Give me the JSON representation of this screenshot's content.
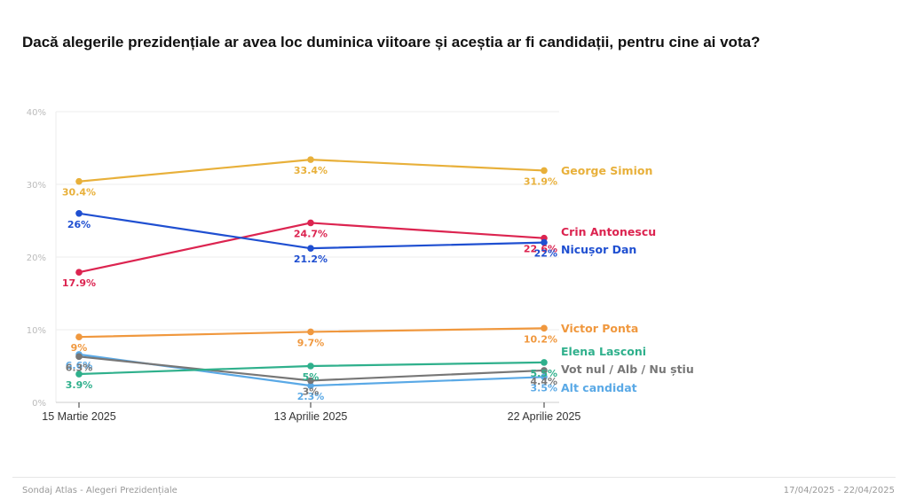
{
  "title": "Dacă alegerile prezidențiale ar avea loc duminica viitoare și aceștia ar fi candidații, pentru cine ai vota?",
  "footer": {
    "source": "Sondaj Atlas - Alegeri Prezidențiale",
    "date_range": "17/04/2025 - 22/04/2025"
  },
  "chart_data": {
    "type": "line",
    "title": "Dacă alegerile prezidențiale ar avea loc duminica viitoare și aceștia ar fi candidații, pentru cine ai vota?",
    "xlabel": "",
    "ylabel": "",
    "x": [
      "15 Martie 2025",
      "13 Aprilie 2025",
      "22 Aprilie 2025"
    ],
    "ylim": [
      0,
      40
    ],
    "yticks": [
      0,
      10,
      20,
      30,
      40
    ],
    "ytick_labels": [
      "0%",
      "10%",
      "20%",
      "30%",
      "40%"
    ],
    "grid": true,
    "legend": "right (inline labels at line ends)",
    "series": [
      {
        "name": "George Simion",
        "color": "#e8b03a",
        "values": [
          30.4,
          33.4,
          31.9
        ],
        "labels": [
          "30.4%",
          "33.4%",
          "31.9%"
        ]
      },
      {
        "name": "Crin Antonescu",
        "color": "#dc2450",
        "values": [
          17.9,
          24.7,
          22.6
        ],
        "labels": [
          "17.9%",
          "24.7%",
          "22.6%"
        ]
      },
      {
        "name": "Nicușor Dan",
        "color": "#1f4fd1",
        "values": [
          26,
          21.2,
          22
        ],
        "labels": [
          "26%",
          "21.2%",
          "22%"
        ]
      },
      {
        "name": "Victor Ponta",
        "color": "#f0983e",
        "values": [
          9,
          9.7,
          10.2
        ],
        "labels": [
          "9%",
          "9.7%",
          "10.2%"
        ]
      },
      {
        "name": "Elena Lasconi",
        "color": "#2fb08c",
        "values": [
          3.9,
          5,
          5.5
        ],
        "labels": [
          "3.9%",
          "5%",
          "5.5%"
        ]
      },
      {
        "name": "Alt candidat",
        "color": "#5aa9e6",
        "values": [
          6.6,
          2.3,
          3.5
        ],
        "labels": [
          "6.6%",
          "2.3%",
          "3.5%"
        ]
      },
      {
        "name": "Vot nul / Alb / Nu știu",
        "color": "#777777",
        "values": [
          6.3,
          3,
          4.4
        ],
        "labels": [
          "6.3%",
          "3%",
          "4.4%"
        ]
      }
    ]
  }
}
